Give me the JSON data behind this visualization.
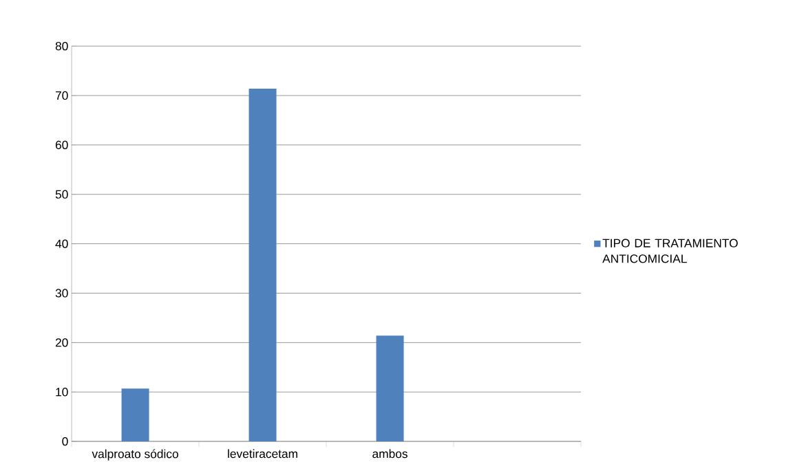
{
  "chart_data": {
    "type": "bar",
    "categories": [
      "valproato sódico",
      "levetiracetam",
      "ambos",
      null
    ],
    "series": [
      {
        "name": "TIPO DE TRATAMIENTO ANTICOMICIAL",
        "color": "#4f81bd",
        "values": [
          10.7,
          71.4,
          21.4,
          null
        ]
      }
    ],
    "ylim": [
      0,
      80
    ],
    "yticks": [
      0,
      10,
      20,
      30,
      40,
      50,
      60,
      70,
      80
    ],
    "grid": "y",
    "legend": "right"
  }
}
